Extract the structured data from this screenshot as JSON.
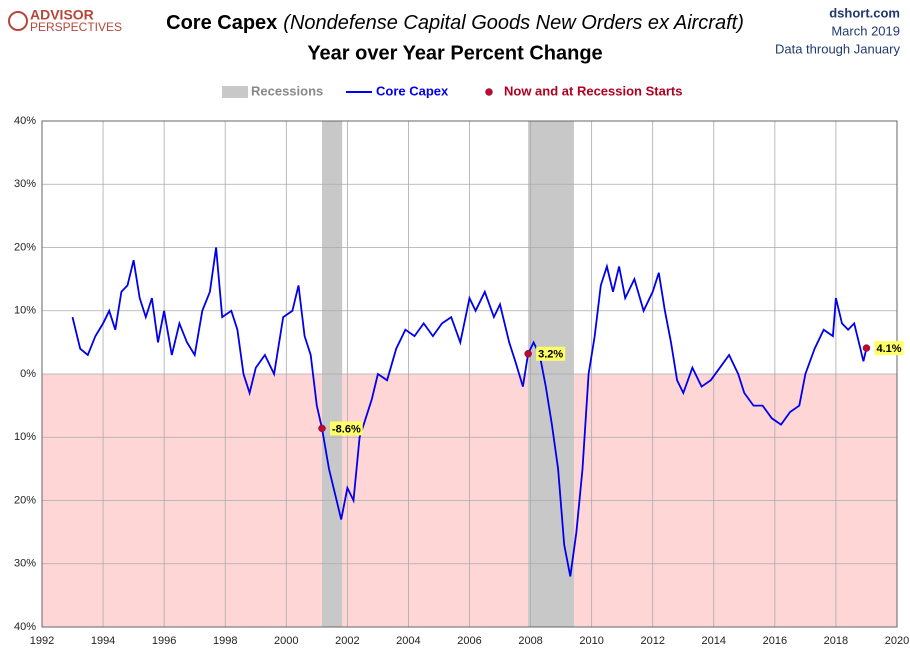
{
  "chart_data": {
    "type": "line",
    "logo": [
      "ADVISOR",
      "PERSPECTIVES"
    ],
    "title": "Core Capex",
    "title_note": "(Nondefense Capital Goods New Orders ex Aircraft)",
    "subtitle": "Year over Year Percent Change",
    "source": [
      "dshort.com",
      "March 2019",
      "Data through January"
    ],
    "xlim": [
      1992,
      2020
    ],
    "xticks": [
      1992,
      1994,
      1996,
      1998,
      2000,
      2002,
      2004,
      2006,
      2008,
      2010,
      2012,
      2014,
      2016,
      2018,
      2020
    ],
    "ylim": [
      -40,
      40
    ],
    "yticks": [
      {
        "value": 40,
        "label": "40%"
      },
      {
        "value": 30,
        "label": "30%"
      },
      {
        "value": 20,
        "label": "20%"
      },
      {
        "value": 10,
        "label": "10%"
      },
      {
        "value": 0,
        "label": "0%"
      },
      {
        "value": -10,
        "label": "10%"
      },
      {
        "value": -20,
        "label": "20%"
      },
      {
        "value": -30,
        "label": "30%"
      },
      {
        "value": -40,
        "label": "40%"
      }
    ],
    "grid": true,
    "recessions": {
      "name": "Recessions",
      "color": "#c8c8c8",
      "ranges": [
        [
          2001.17,
          2001.83
        ],
        [
          2007.92,
          2009.42
        ]
      ]
    },
    "series": [
      {
        "name": "Core Capex",
        "color": "#0000ee",
        "x": [
          1993.0,
          1993.25,
          1993.5,
          1993.75,
          1994.0,
          1994.2,
          1994.4,
          1994.6,
          1994.8,
          1995.0,
          1995.2,
          1995.4,
          1995.6,
          1995.8,
          1996.0,
          1996.25,
          1996.5,
          1996.75,
          1997.0,
          1997.25,
          1997.5,
          1997.7,
          1997.9,
          1998.2,
          1998.4,
          1998.6,
          1998.8,
          1999.0,
          1999.3,
          1999.6,
          1999.9,
          2000.2,
          2000.4,
          2000.6,
          2000.8,
          2001.0,
          2001.17,
          2001.4,
          2001.6,
          2001.8,
          2002.0,
          2002.2,
          2002.4,
          2002.6,
          2002.8,
          2003.0,
          2003.3,
          2003.6,
          2003.9,
          2004.2,
          2004.5,
          2004.8,
          2005.1,
          2005.4,
          2005.7,
          2006.0,
          2006.2,
          2006.5,
          2006.8,
          2007.0,
          2007.3,
          2007.5,
          2007.75,
          2007.92,
          2008.1,
          2008.3,
          2008.5,
          2008.7,
          2008.9,
          2009.1,
          2009.3,
          2009.5,
          2009.7,
          2009.9,
          2010.1,
          2010.3,
          2010.5,
          2010.7,
          2010.9,
          2011.1,
          2011.4,
          2011.7,
          2012.0,
          2012.2,
          2012.4,
          2012.6,
          2012.8,
          2013.0,
          2013.3,
          2013.6,
          2013.9,
          2014.2,
          2014.5,
          2014.8,
          2015.0,
          2015.3,
          2015.6,
          2015.9,
          2016.2,
          2016.5,
          2016.8,
          2017.0,
          2017.3,
          2017.6,
          2017.9,
          2018.0,
          2018.2,
          2018.4,
          2018.6,
          2018.8,
          2018.9,
          2019.0
        ],
        "values": [
          9,
          4,
          3,
          6,
          8,
          10,
          7,
          13,
          14,
          18,
          12,
          9,
          12,
          5,
          10,
          3,
          8,
          5,
          3,
          10,
          13,
          20,
          9,
          10,
          7,
          0,
          -3,
          1,
          3,
          0,
          9,
          10,
          14,
          6,
          3,
          -5,
          -8.6,
          -15,
          -19,
          -23,
          -18,
          -20,
          -10,
          -7,
          -4,
          0,
          -1,
          4,
          7,
          6,
          8,
          6,
          8,
          9,
          5,
          12,
          10,
          13,
          9,
          11,
          5,
          2,
          -2,
          3.2,
          5,
          3,
          -2,
          -8,
          -15,
          -27,
          -32,
          -25,
          -15,
          0,
          6,
          14,
          17,
          13,
          17,
          12,
          15,
          10,
          13,
          16,
          10,
          5,
          -1,
          -3,
          1,
          -2,
          -1,
          1,
          3,
          0,
          -3,
          -5,
          -5,
          -7,
          -8,
          -6,
          -5,
          0,
          4,
          7,
          6,
          12,
          8,
          7,
          8,
          4,
          2,
          4.1
        ]
      }
    ],
    "markers": {
      "name": "Now and at Recession Starts",
      "color": "#cc0033",
      "x": [
        2001.17,
        2007.92,
        2019.0
      ],
      "values": [
        -8.6,
        3.2,
        4.1
      ],
      "value_labels": [
        "-8.6%",
        "3.2%",
        "4.1%"
      ]
    }
  }
}
